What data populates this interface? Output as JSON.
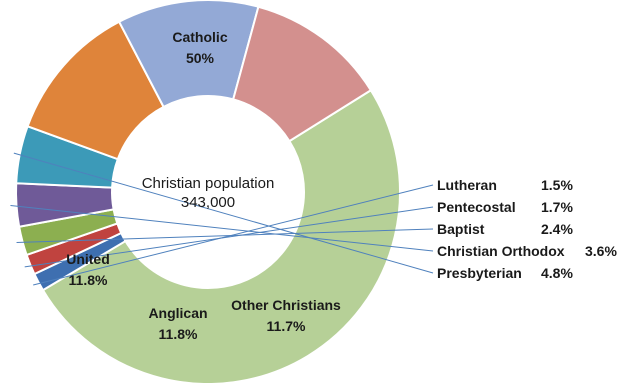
{
  "chart_data": {
    "type": "pie",
    "hole": true,
    "center_label": [
      "Christian population",
      "343,000"
    ],
    "slices": [
      {
        "name": "Catholic",
        "value_label": "50%",
        "value": 50.0,
        "color": "#b6d097"
      },
      {
        "name": "Lutheran",
        "value_label": "1.5%",
        "value": 1.5,
        "color": "#3e6fb0"
      },
      {
        "name": "Pentecostal",
        "value_label": "1.7%",
        "value": 1.7,
        "color": "#c0433f"
      },
      {
        "name": "Baptist",
        "value_label": "2.4%",
        "value": 2.4,
        "color": "#8caf50"
      },
      {
        "name": "Christian Orthodox",
        "value_label": "3.6%",
        "value": 3.6,
        "color": "#6f5a98"
      },
      {
        "name": "Presbyterian",
        "value_label": "4.8%",
        "value": 4.8,
        "color": "#3c9ab8"
      },
      {
        "name": "Other Christians",
        "value_label": "11.7%",
        "value": 11.7,
        "color": "#df843a"
      },
      {
        "name": "Anglican",
        "value_label": "11.8%",
        "value": 11.8,
        "color": "#93a9d6"
      },
      {
        "name": "United",
        "value_label": "11.8%",
        "value": 11.8,
        "color": "#d3908e"
      }
    ]
  }
}
